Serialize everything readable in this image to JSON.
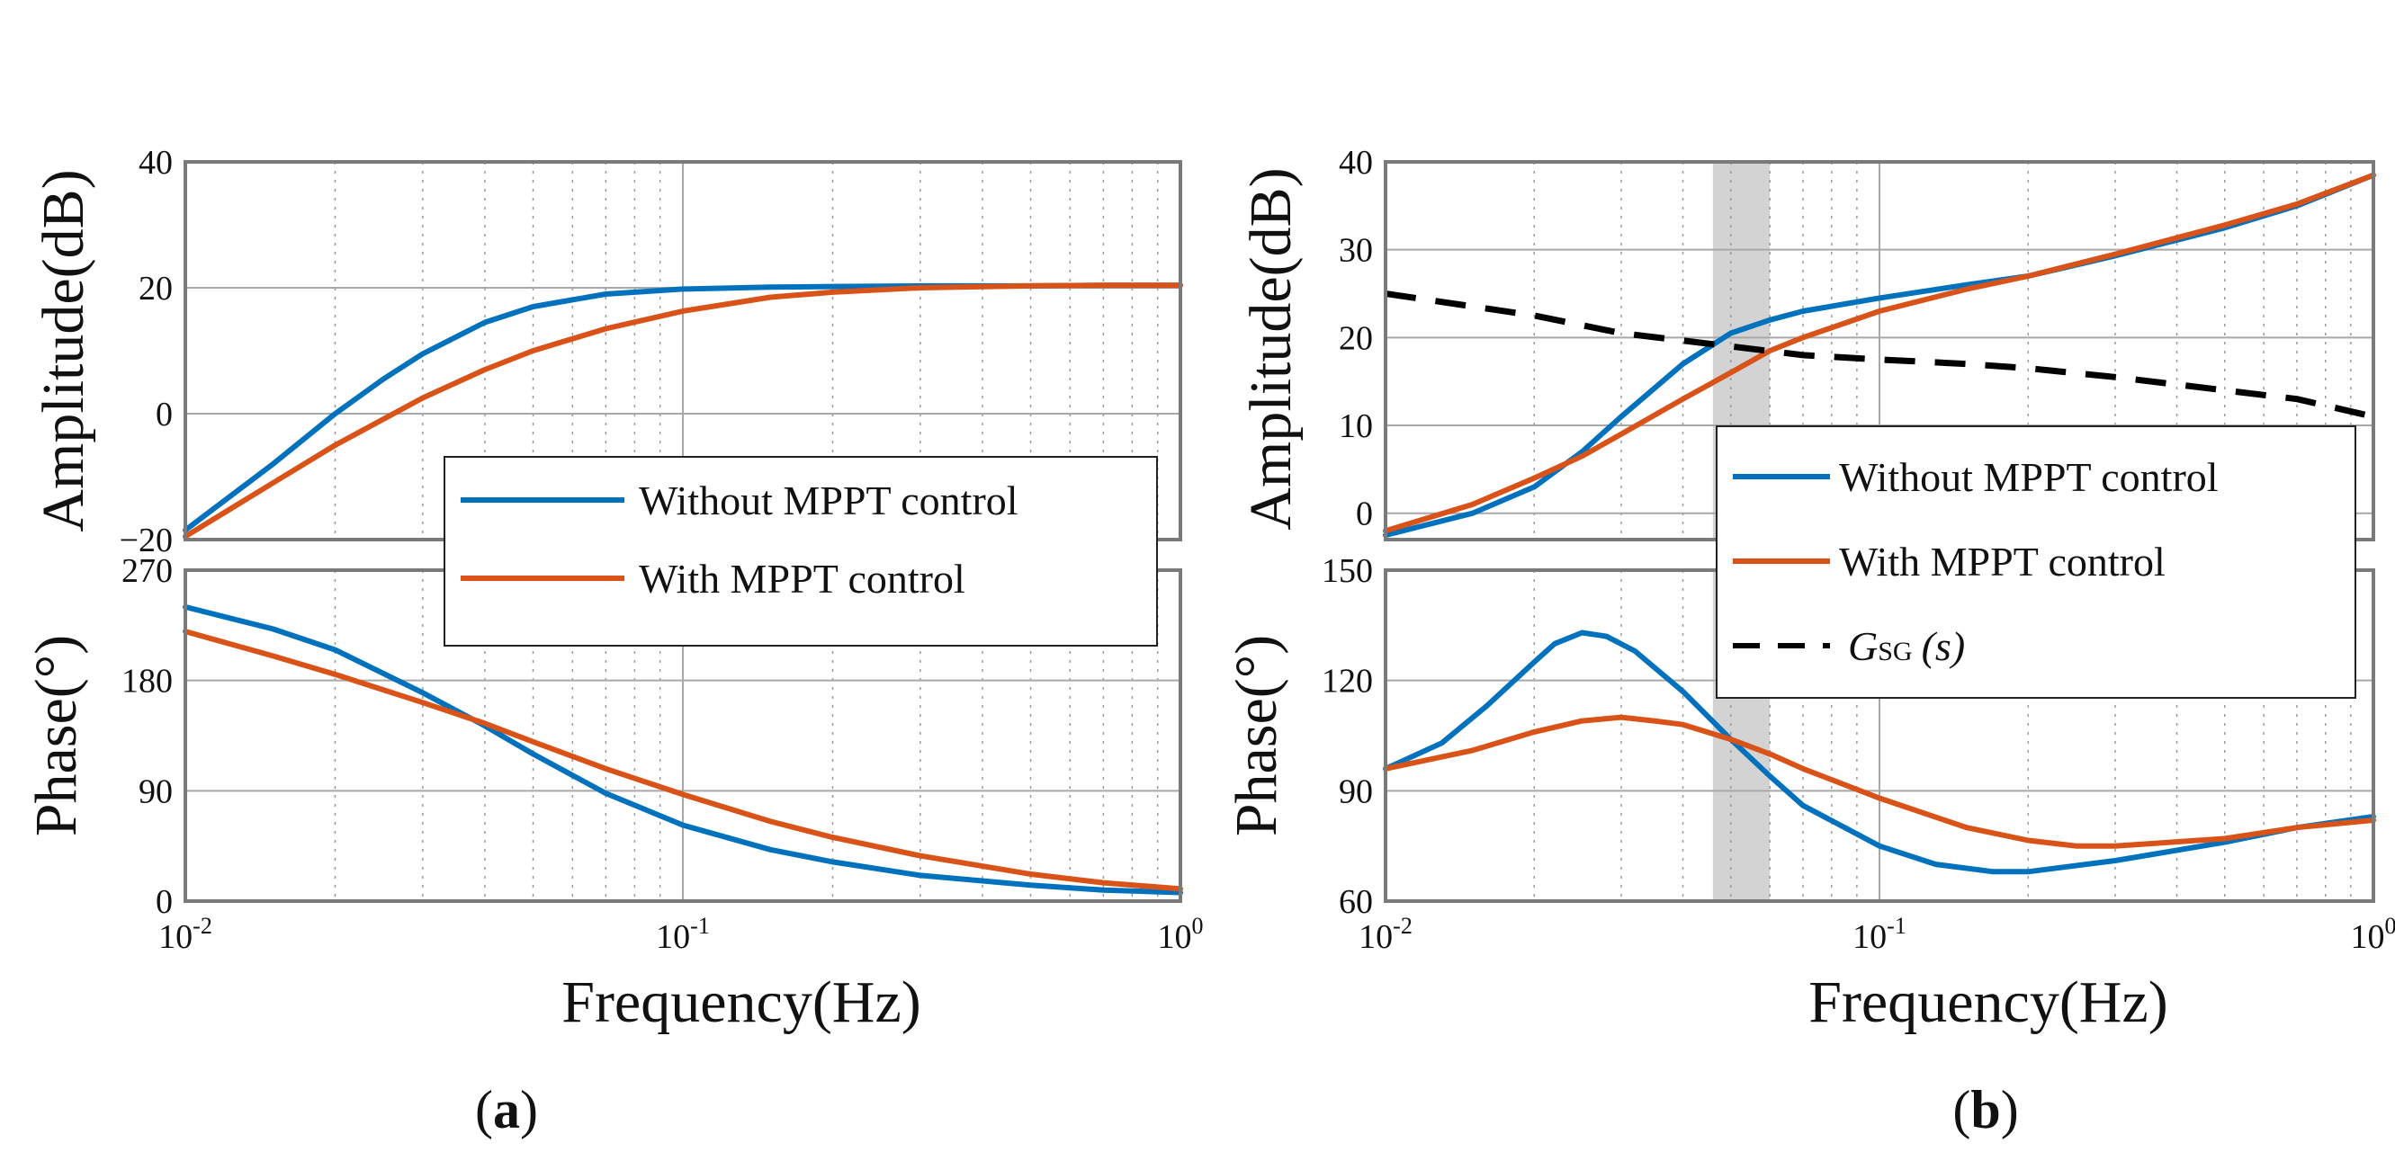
{
  "figure": {
    "panels": [
      {
        "letter": "a",
        "open": "(",
        "close": ")"
      },
      {
        "letter": "b",
        "open": "(",
        "close": ")"
      }
    ]
  },
  "colors": {
    "without": "#0072BD",
    "with": "#D95319",
    "gsg": "#000000",
    "highlight": "#d3d3d3",
    "frame": "#7a7a7a"
  },
  "chart_data": [
    {
      "type": "line",
      "panel": "a",
      "subplot": "amplitude",
      "xscale": "log",
      "xlim": [
        0.01,
        1
      ],
      "xticks": [
        {
          "base": "10",
          "exp": "-2"
        },
        {
          "base": "10",
          "exp": "-1"
        },
        {
          "base": "10",
          "exp": "0"
        }
      ],
      "xlabel": "Frequency(Hz)",
      "ylabel": "Amplitude(dB)",
      "ylim": [
        -20,
        40
      ],
      "yticks": [
        "−20",
        "0",
        "20",
        "40"
      ],
      "grid": true,
      "legend": {
        "placement": "lower-right",
        "entries": [
          "Without MPPT control",
          "With MPPT control"
        ]
      },
      "series": [
        {
          "name": "Without MPPT control",
          "color": "without",
          "x": [
            0.01,
            0.015,
            0.02,
            0.025,
            0.03,
            0.04,
            0.05,
            0.07,
            0.1,
            0.15,
            0.2,
            0.3,
            0.5,
            0.7,
            1.0
          ],
          "y": [
            -18.5,
            -8,
            0,
            5.5,
            9.5,
            14.5,
            17,
            19,
            19.8,
            20.1,
            20.2,
            20.3,
            20.3,
            20.4,
            20.4
          ]
        },
        {
          "name": "With MPPT control",
          "color": "with",
          "x": [
            0.01,
            0.015,
            0.02,
            0.03,
            0.04,
            0.05,
            0.07,
            0.1,
            0.15,
            0.2,
            0.3,
            0.5,
            0.7,
            1.0
          ],
          "y": [
            -19.5,
            -11,
            -5,
            2.5,
            7,
            10,
            13.5,
            16.3,
            18.5,
            19.3,
            20,
            20.3,
            20.4,
            20.4
          ]
        }
      ]
    },
    {
      "type": "line",
      "panel": "a",
      "subplot": "phase",
      "xscale": "log",
      "xlim": [
        0.01,
        1
      ],
      "xticks": [
        {
          "base": "10",
          "exp": "-2"
        },
        {
          "base": "10",
          "exp": "-1"
        },
        {
          "base": "10",
          "exp": "0"
        }
      ],
      "xlabel": "Frequency(Hz)",
      "ylabel": "Phase(°)",
      "ylim": [
        0,
        270
      ],
      "yticks": [
        "0",
        "90",
        "180",
        "270"
      ],
      "grid": true,
      "series": [
        {
          "name": "Without MPPT control",
          "color": "without",
          "x": [
            0.01,
            0.015,
            0.02,
            0.03,
            0.04,
            0.05,
            0.07,
            0.1,
            0.15,
            0.2,
            0.3,
            0.5,
            0.7,
            1.0
          ],
          "y": [
            240,
            222,
            205,
            170,
            143,
            120,
            88,
            62,
            42,
            32,
            21,
            13,
            9,
            7
          ]
        },
        {
          "name": "With MPPT control",
          "color": "with",
          "x": [
            0.01,
            0.015,
            0.02,
            0.03,
            0.04,
            0.05,
            0.07,
            0.1,
            0.15,
            0.2,
            0.3,
            0.5,
            0.7,
            1.0
          ],
          "y": [
            220,
            200,
            185,
            162,
            145,
            130,
            108,
            87,
            65,
            52,
            37,
            22,
            15,
            10
          ]
        }
      ]
    },
    {
      "type": "line",
      "panel": "b",
      "subplot": "amplitude",
      "xscale": "log",
      "xlim": [
        0.01,
        1
      ],
      "xticks": [
        {
          "base": "10",
          "exp": "-2"
        },
        {
          "base": "10",
          "exp": "-1"
        },
        {
          "base": "10",
          "exp": "0"
        }
      ],
      "xlabel": "Frequency(Hz)",
      "ylabel": "Amplitude(dB)",
      "ylim": [
        -3,
        40
      ],
      "yticks": [
        "0",
        "10",
        "20",
        "30",
        "40"
      ],
      "ytick_values": [
        0,
        10,
        20,
        30,
        40
      ],
      "grid": true,
      "highlight_band": [
        0.046,
        0.06
      ],
      "legend": {
        "placement": "lower-right",
        "entries": [
          "Without MPPT control",
          "With MPPT control"
        ],
        "gsg_symbol": "G",
        "gsg_subscript": "SG",
        "gsg_arg": "(s)"
      },
      "series": [
        {
          "name": "Without MPPT control",
          "color": "without",
          "dash": "solid",
          "x": [
            0.01,
            0.015,
            0.02,
            0.025,
            0.03,
            0.04,
            0.05,
            0.06,
            0.07,
            0.1,
            0.15,
            0.2,
            0.3,
            0.5,
            0.7,
            1.0
          ],
          "y": [
            -2.5,
            0,
            3,
            7,
            11,
            17,
            20.5,
            22,
            23,
            24.5,
            26,
            27,
            29.3,
            32.5,
            35,
            38.5
          ]
        },
        {
          "name": "With MPPT control",
          "color": "with",
          "dash": "solid",
          "x": [
            0.01,
            0.015,
            0.02,
            0.025,
            0.03,
            0.04,
            0.05,
            0.06,
            0.07,
            0.1,
            0.15,
            0.2,
            0.3,
            0.5,
            0.7,
            1.0
          ],
          "y": [
            -2,
            1,
            4,
            6.5,
            9,
            13,
            16,
            18.5,
            20,
            23,
            25.5,
            27,
            29.5,
            32.8,
            35.2,
            38.5
          ]
        },
        {
          "name": "G_SG(s)",
          "color": "gsg",
          "dash": "dashed",
          "x": [
            0.01,
            0.02,
            0.03,
            0.05,
            0.07,
            0.1,
            0.15,
            0.2,
            0.3,
            0.5,
            0.7,
            1.0
          ],
          "y": [
            25,
            22.5,
            20.5,
            19,
            18,
            17.5,
            17,
            16.5,
            15.5,
            14,
            13,
            11
          ]
        }
      ]
    },
    {
      "type": "line",
      "panel": "b",
      "subplot": "phase",
      "xscale": "log",
      "xlim": [
        0.01,
        1
      ],
      "xticks": [
        {
          "base": "10",
          "exp": "-2"
        },
        {
          "base": "10",
          "exp": "-1"
        },
        {
          "base": "10",
          "exp": "0"
        }
      ],
      "xlabel": "Frequency(Hz)",
      "ylabel": "Phase(°)",
      "ylim": [
        60,
        150
      ],
      "yticks": [
        "60",
        "90",
        "120",
        "150"
      ],
      "grid": true,
      "highlight_band": [
        0.046,
        0.06
      ],
      "series": [
        {
          "name": "Without MPPT control",
          "color": "without",
          "x": [
            0.01,
            0.013,
            0.016,
            0.02,
            0.022,
            0.025,
            0.028,
            0.032,
            0.04,
            0.05,
            0.06,
            0.07,
            0.1,
            0.13,
            0.17,
            0.2,
            0.3,
            0.5,
            0.7,
            1.0
          ],
          "y": [
            96,
            103,
            113,
            125,
            130,
            133,
            132,
            128,
            117,
            104,
            94,
            86,
            75,
            70,
            68,
            68,
            71,
            76,
            80,
            83
          ]
        },
        {
          "name": "With MPPT control",
          "color": "with",
          "x": [
            0.01,
            0.015,
            0.02,
            0.025,
            0.03,
            0.035,
            0.04,
            0.05,
            0.06,
            0.07,
            0.1,
            0.15,
            0.2,
            0.25,
            0.3,
            0.5,
            0.7,
            1.0
          ],
          "y": [
            96,
            101,
            106,
            109,
            110,
            109,
            108,
            104,
            100,
            96,
            88,
            80,
            76.5,
            75,
            75,
            77,
            80,
            82
          ]
        }
      ]
    }
  ]
}
